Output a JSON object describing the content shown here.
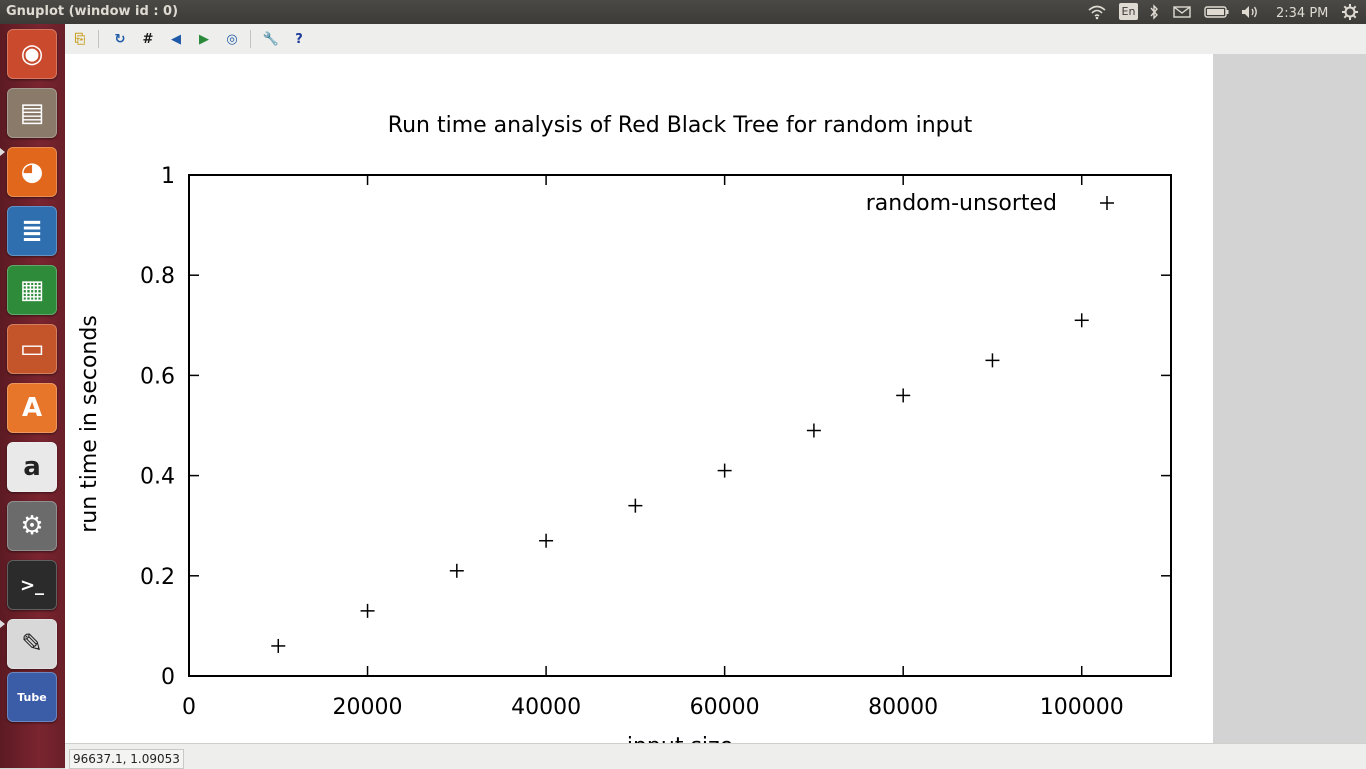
{
  "window": {
    "title": "Gnuplot (window id : 0)"
  },
  "tray": {
    "language": "En",
    "clock": "2:34 PM",
    "icons": [
      "wifi-icon",
      "bluetooth-icon",
      "mail-icon",
      "battery-icon",
      "volume-icon",
      "gear-icon"
    ]
  },
  "launcher": {
    "items": [
      {
        "name": "ubuntu-dash-icon",
        "glyph": "◉",
        "color": "#c94a2c"
      },
      {
        "name": "files-icon",
        "glyph": "▤",
        "color": "#8a7a6a"
      },
      {
        "name": "firefox-icon",
        "glyph": "◕",
        "color": "#e0671b"
      },
      {
        "name": "writer-icon",
        "glyph": "≣",
        "color": "#2f6fb0"
      },
      {
        "name": "calc-icon",
        "glyph": "▦",
        "color": "#2e8b3a"
      },
      {
        "name": "impress-icon",
        "glyph": "▭",
        "color": "#c4552b"
      },
      {
        "name": "software-center-icon",
        "glyph": "A",
        "color": "#e8762a"
      },
      {
        "name": "amazon-icon",
        "glyph": "a",
        "color": "#e9e9e9"
      },
      {
        "name": "system-settings-icon",
        "glyph": "⚙",
        "color": "#6b6b6b"
      },
      {
        "name": "terminal-icon",
        "glyph": ">_",
        "color": "#2b2b2b"
      },
      {
        "name": "text-editor-icon",
        "glyph": "✎",
        "color": "#d8d8d8"
      },
      {
        "name": "youtube-icon",
        "glyph": "Tube",
        "color": "#3b5da8"
      }
    ]
  },
  "toolbar": {
    "buttons": [
      {
        "name": "copy-to-clipboard-icon",
        "glyph": "⎘",
        "color": "#c9a227"
      },
      {
        "name": "replot-icon",
        "glyph": "↻",
        "color": "#1e5aa8"
      },
      {
        "name": "grid-icon",
        "glyph": "#",
        "color": "#1a1a1a"
      },
      {
        "name": "zoom-previous-icon",
        "glyph": "◀",
        "color": "#1e5aa8"
      },
      {
        "name": "zoom-next-icon",
        "glyph": "▶",
        "color": "#2a8a3a"
      },
      {
        "name": "unzoom-icon",
        "glyph": "◎",
        "color": "#1e5aa8"
      },
      {
        "name": "preferences-icon",
        "glyph": "🔧",
        "color": "#b07a1a"
      },
      {
        "name": "help-icon",
        "glyph": "?",
        "color": "#1e3a98"
      }
    ]
  },
  "status": {
    "coords": "96637.1,  1.09053"
  },
  "chart_data": {
    "type": "scatter",
    "title": "Run time analysis of Red Black Tree for random input",
    "xlabel": "input size",
    "ylabel": "run time in seconds",
    "xlim": [
      0,
      110000
    ],
    "ylim": [
      0,
      1
    ],
    "xticks": [
      0,
      20000,
      40000,
      60000,
      80000,
      100000
    ],
    "xtick_labels": [
      "0",
      "20000",
      "40000",
      "60000",
      "80000",
      "100000"
    ],
    "yticks": [
      0,
      0.2,
      0.4,
      0.6,
      0.8,
      1
    ],
    "ytick_labels": [
      "0",
      "0.2",
      "0.4",
      "0.6",
      "0.8",
      "1"
    ],
    "grid": false,
    "legend_position": "top-right",
    "marker": "+",
    "series": [
      {
        "name": "random-unsorted",
        "x": [
          10000,
          20000,
          30000,
          40000,
          50000,
          60000,
          70000,
          80000,
          90000,
          100000
        ],
        "y": [
          0.06,
          0.13,
          0.21,
          0.27,
          0.34,
          0.41,
          0.49,
          0.56,
          0.63,
          0.71
        ]
      }
    ]
  }
}
